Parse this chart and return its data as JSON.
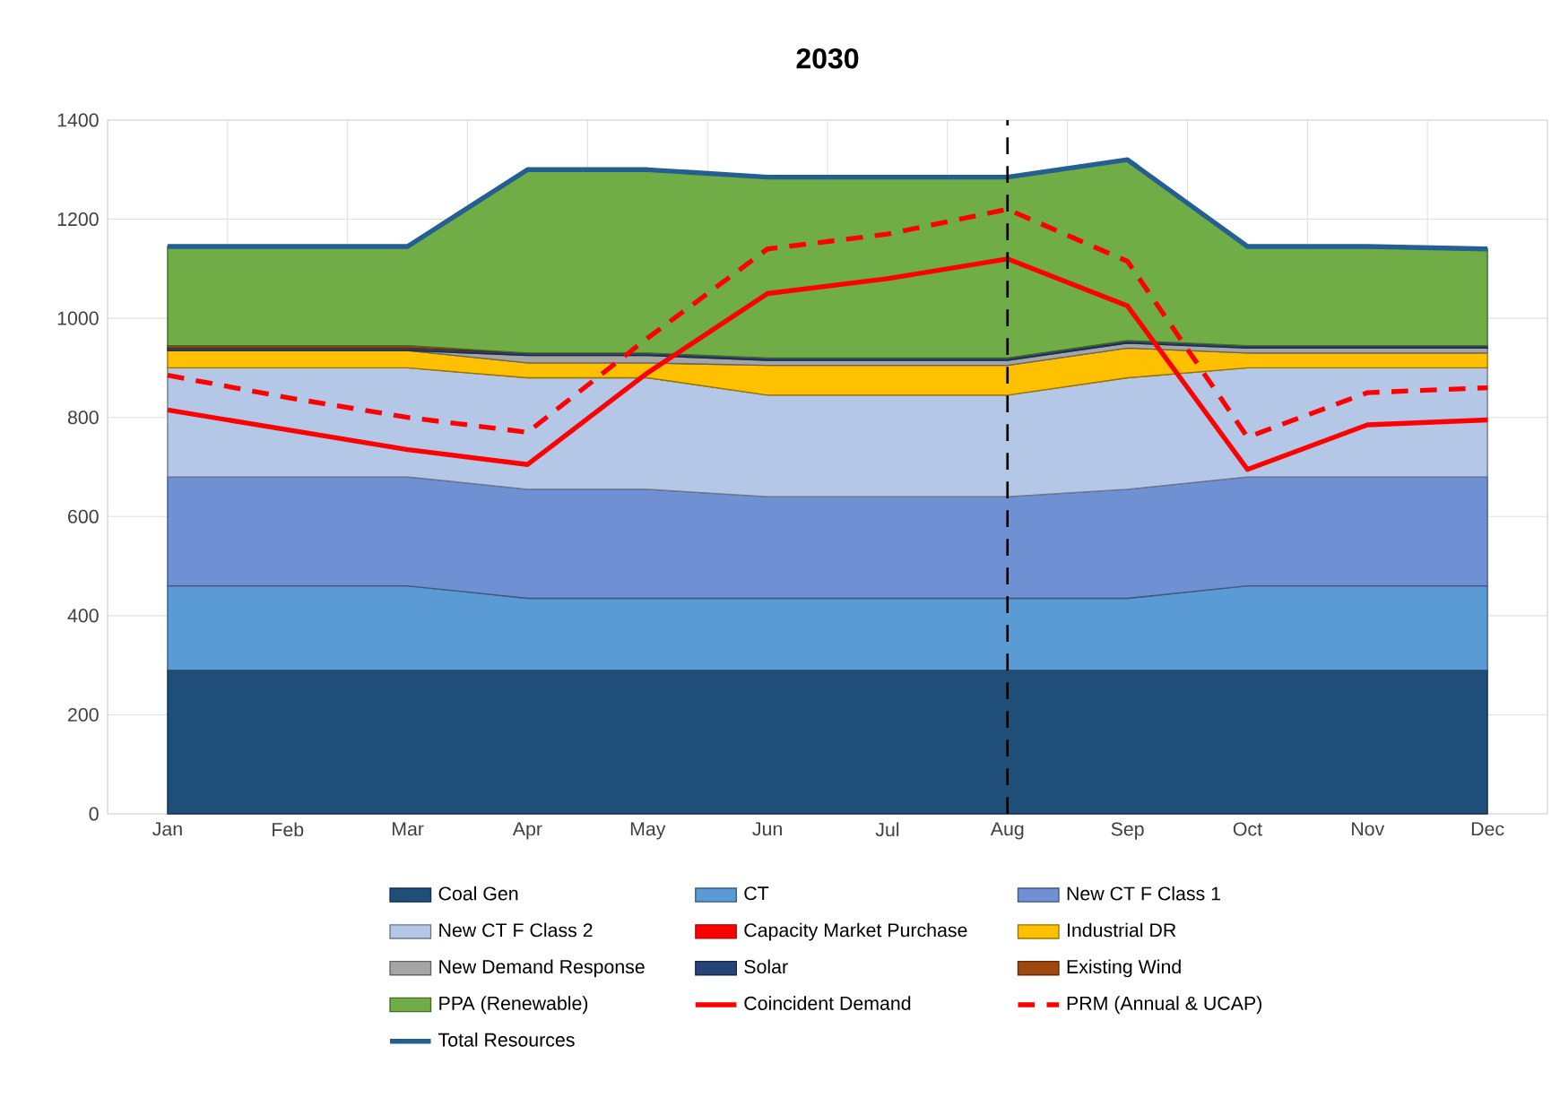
{
  "chart_data": {
    "type": "area",
    "title": "2030",
    "stacked": true,
    "categories": [
      "Jan",
      "Feb",
      "Mar",
      "Apr",
      "May",
      "Jun",
      "Jul",
      "Aug",
      "Sep",
      "Oct",
      "Nov",
      "Dec"
    ],
    "ylim": [
      0,
      1400
    ],
    "yticks": [
      0,
      200,
      400,
      600,
      800,
      1000,
      1200,
      1400
    ],
    "grid": true,
    "legend": "bottom",
    "series": [
      {
        "name": "Coal Gen",
        "color": "#1f4e79",
        "values": [
          290,
          290,
          290,
          290,
          290,
          290,
          290,
          290,
          290,
          290,
          290,
          290
        ]
      },
      {
        "name": "CT",
        "color": "#5b9bd5",
        "values": [
          170,
          170,
          170,
          145,
          145,
          145,
          145,
          145,
          145,
          170,
          170,
          170
        ]
      },
      {
        "name": "New CT F Class 1",
        "color": "#6f91d3",
        "values": [
          220,
          220,
          220,
          220,
          220,
          205,
          205,
          205,
          220,
          220,
          220,
          220
        ]
      },
      {
        "name": "New CT F Class 2",
        "color": "#b4c7e7",
        "values": [
          220,
          220,
          220,
          225,
          225,
          205,
          205,
          205,
          225,
          220,
          220,
          220
        ]
      },
      {
        "name": "Capacity Market Purchase",
        "color": "#ff0000",
        "values": [
          null,
          null,
          null,
          null,
          null,
          null,
          null,
          null,
          null,
          null,
          null,
          null
        ]
      },
      {
        "name": "Industrial DR",
        "color": "#ffc000",
        "values": [
          35,
          35,
          35,
          30,
          30,
          60,
          60,
          60,
          60,
          30,
          30,
          30
        ]
      },
      {
        "name": "New Demand Response",
        "color": "#a5a5a5",
        "values": [
          0,
          0,
          0,
          15,
          15,
          10,
          10,
          10,
          10,
          10,
          10,
          10
        ]
      },
      {
        "name": "Solar",
        "color": "#264478",
        "values": [
          5,
          5,
          5,
          5,
          5,
          5,
          5,
          5,
          5,
          5,
          5,
          5
        ]
      },
      {
        "name": "Existing Wind",
        "color": "#9e480e",
        "values": [
          5,
          5,
          5,
          0,
          0,
          0,
          0,
          0,
          0,
          0,
          0,
          0
        ]
      },
      {
        "name": "PPA (Renewable)",
        "color": "#70ad47",
        "values": [
          200,
          200,
          200,
          370,
          370,
          365,
          365,
          365,
          365,
          200,
          200,
          195
        ]
      },
      {
        "name": "Coincident Demand",
        "type": "line",
        "color": "#ff0000",
        "line_style": "solid",
        "values": [
          815,
          775,
          735,
          705,
          890,
          1050,
          1080,
          1120,
          1025,
          695,
          785,
          795
        ]
      },
      {
        "name": "PRM (Annual & UCAP)",
        "type": "line",
        "color": "#ff0000",
        "line_style": "dashed",
        "values": [
          885,
          840,
          800,
          770,
          960,
          1140,
          1170,
          1220,
          1115,
          760,
          850,
          860
        ]
      },
      {
        "name": "Total Resources",
        "type": "line",
        "color": "#255e91",
        "line_style": "solid",
        "values": [
          1145,
          1145,
          1145,
          1300,
          1300,
          1285,
          1285,
          1285,
          1320,
          1145,
          1145,
          1140
        ]
      }
    ],
    "ref_lines": [
      {
        "axis": "x",
        "value": "Aug",
        "color": "#000000",
        "line_style": "dashed"
      }
    ]
  }
}
